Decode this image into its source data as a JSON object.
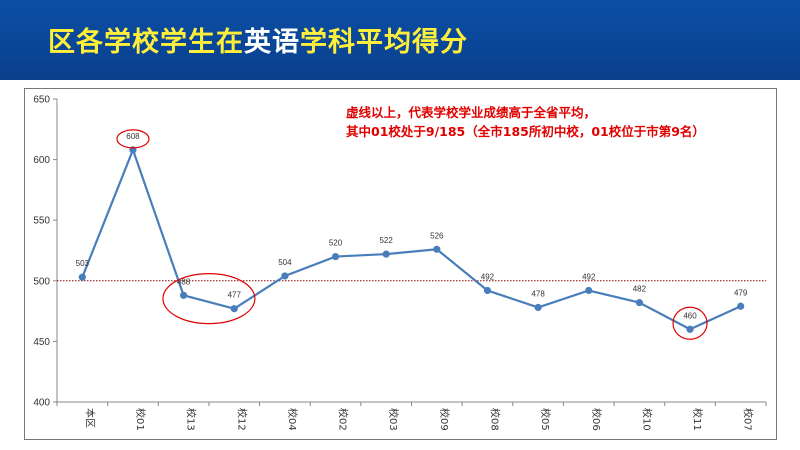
{
  "header": {
    "title_part1": "区各学校学生在",
    "title_highlight": "英语",
    "title_part2": "学科平均得分",
    "colors": {
      "background": "#0b4fa6",
      "title": "#ffef3a",
      "highlight": "#ffffff"
    }
  },
  "note": {
    "line1": "虚线以上，代表学校学业成绩高于全省平均，",
    "line2": "其中01校处于9/185（全市185所初中校，01校位于市第9名）",
    "color": "#e00000"
  },
  "chart_data": {
    "type": "line",
    "categories": [
      "本区",
      "校01",
      "校13",
      "校12",
      "校04",
      "校02",
      "校03",
      "校09",
      "校08",
      "校05",
      "校06",
      "校10",
      "校11",
      "校07"
    ],
    "series": [
      {
        "values": [
          503,
          608,
          488,
          477,
          504,
          520,
          522,
          526,
          492,
          478,
          492,
          482,
          460,
          479
        ],
        "color": "#4a7ebb"
      }
    ],
    "data_labels": [
      "503",
      "608",
      "488",
      "477",
      "504",
      "520",
      "522",
      "526",
      "492",
      "478",
      "492",
      "482",
      "460",
      "479"
    ],
    "ylim": [
      400,
      650
    ],
    "yticks": [
      400,
      450,
      500,
      550,
      600,
      650
    ],
    "reference_line": {
      "value": 500,
      "style": "dotted",
      "color": "#8b0000"
    },
    "highlight_circles": [
      "校01",
      "校13-校12",
      "校11"
    ],
    "highlight_color": "#e00000",
    "grid": false,
    "legend": "none"
  }
}
